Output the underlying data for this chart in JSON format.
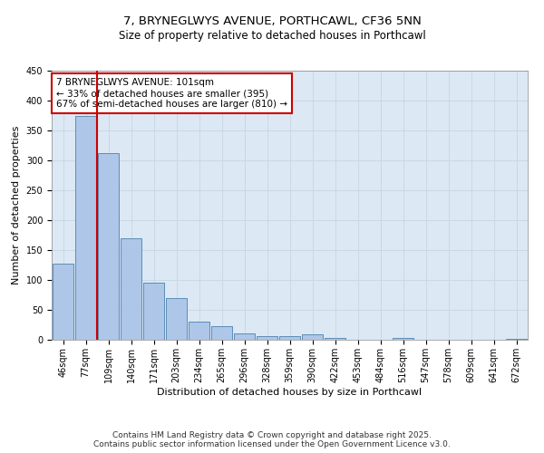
{
  "title_line1": "7, BRYNEGLWYS AVENUE, PORTHCAWL, CF36 5NN",
  "title_line2": "Size of property relative to detached houses in Porthcawl",
  "xlabel": "Distribution of detached houses by size in Porthcawl",
  "ylabel": "Number of detached properties",
  "bar_labels": [
    "46sqm",
    "77sqm",
    "109sqm",
    "140sqm",
    "171sqm",
    "203sqm",
    "234sqm",
    "265sqm",
    "296sqm",
    "328sqm",
    "359sqm",
    "390sqm",
    "422sqm",
    "453sqm",
    "484sqm",
    "516sqm",
    "547sqm",
    "578sqm",
    "609sqm",
    "641sqm",
    "672sqm"
  ],
  "bar_values": [
    127,
    373,
    311,
    170,
    95,
    70,
    30,
    22,
    10,
    6,
    6,
    9,
    3,
    0,
    0,
    3,
    0,
    0,
    0,
    0,
    2
  ],
  "bar_color": "#aec6e8",
  "bar_edge_color": "#5b8db8",
  "vline_color": "#cc0000",
  "annotation_text": "7 BRYNEGLWYS AVENUE: 101sqm\n← 33% of detached houses are smaller (395)\n67% of semi-detached houses are larger (810) →",
  "annotation_box_color": "#ffffff",
  "annotation_box_edge": "#cc0000",
  "ylim": [
    0,
    450
  ],
  "yticks": [
    0,
    50,
    100,
    150,
    200,
    250,
    300,
    350,
    400,
    450
  ],
  "grid_color": "#c8d8e8",
  "bg_color": "#dce8f4",
  "footer_text": "Contains HM Land Registry data © Crown copyright and database right 2025.\nContains public sector information licensed under the Open Government Licence v3.0.",
  "title_fontsize": 9.5,
  "subtitle_fontsize": 8.5,
  "axis_label_fontsize": 8,
  "tick_fontsize": 7,
  "annotation_fontsize": 7.5,
  "footer_fontsize": 6.5
}
